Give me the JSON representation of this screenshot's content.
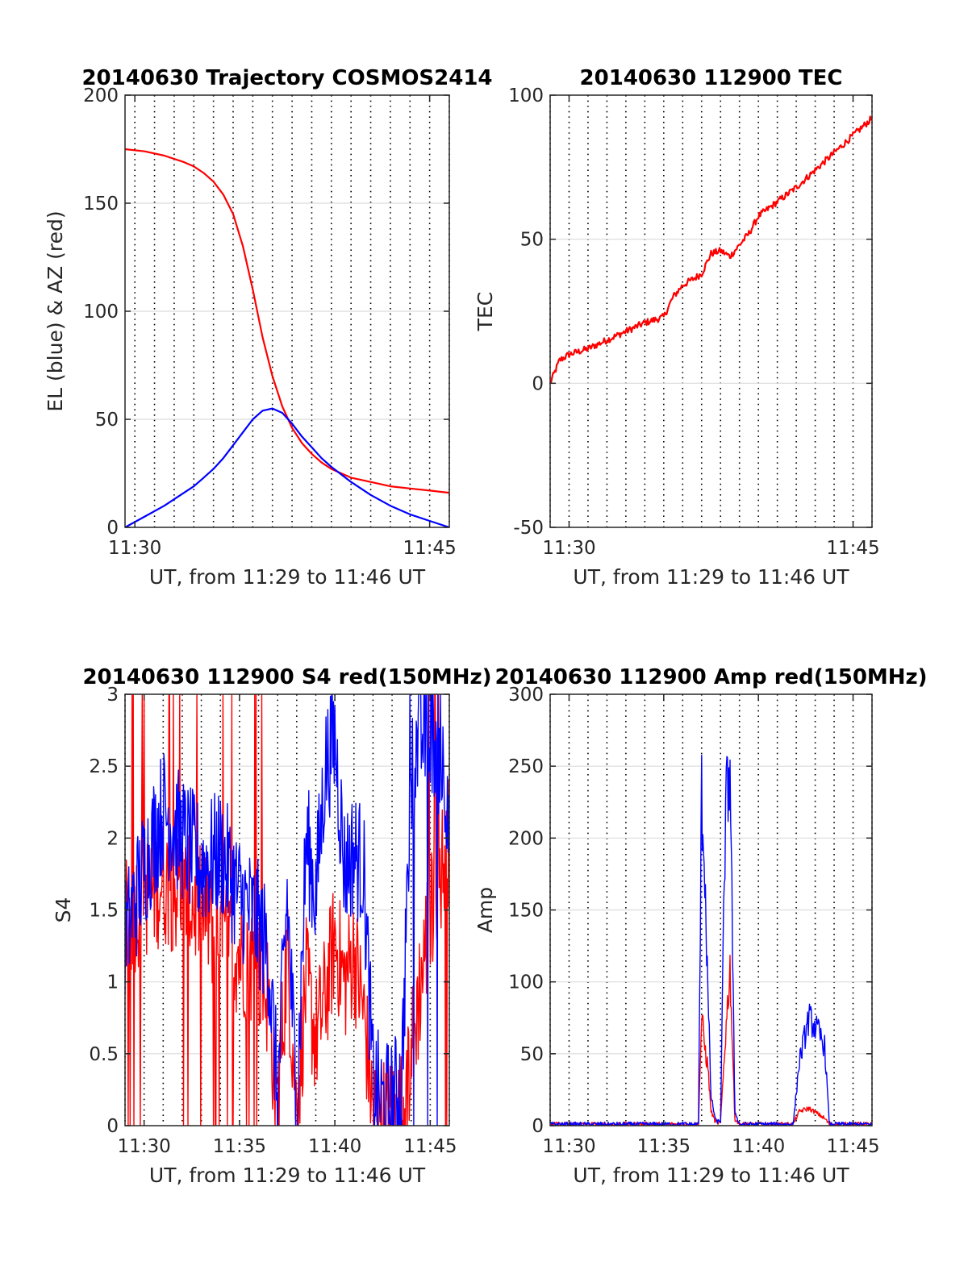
{
  "chart_data": [
    {
      "id": "trajectory",
      "type": "line",
      "title": "20140630 Trajectory COSMOS2414",
      "xlabel": "UT, from 11:29 to 11:46 UT",
      "ylabel": "EL (blue) & AZ (red)",
      "xlim": [
        "11:29:30",
        "11:46:00"
      ],
      "ylim": [
        0,
        200
      ],
      "x_ticks": [
        "11:30",
        "11:45"
      ],
      "y_ticks": [
        "0",
        "50",
        "100",
        "150",
        "200"
      ],
      "grid": true,
      "colors": {
        "EL": "#0000ff",
        "AZ": "#ff0000"
      },
      "series": [
        {
          "name": "AZ",
          "color": "#ff0000",
          "x": [
            "11:29:30",
            "11:30:30",
            "11:31:30",
            "11:32:30",
            "11:33:00",
            "11:33:30",
            "11:34:00",
            "11:34:30",
            "11:35:00",
            "11:35:30",
            "11:36:00",
            "11:36:30",
            "11:37:00",
            "11:37:30",
            "11:38:00",
            "11:38:30",
            "11:39:00",
            "11:39:30",
            "11:40:00",
            "11:41:00",
            "11:42:00",
            "11:43:00",
            "11:44:00",
            "11:45:00",
            "11:46:00"
          ],
          "values": [
            175,
            174,
            172,
            169,
            167,
            164,
            160,
            154,
            145,
            130,
            110,
            88,
            70,
            56,
            46,
            39,
            34,
            30,
            27,
            23,
            21,
            19,
            18,
            17,
            16
          ]
        },
        {
          "name": "EL",
          "color": "#0000ff",
          "x": [
            "11:29:30",
            "11:30:30",
            "11:31:30",
            "11:32:30",
            "11:33:00",
            "11:33:30",
            "11:34:00",
            "11:34:30",
            "11:35:00",
            "11:35:30",
            "11:36:00",
            "11:36:30",
            "11:37:00",
            "11:37:30",
            "11:38:00",
            "11:38:30",
            "11:39:00",
            "11:39:30",
            "11:40:00",
            "11:41:00",
            "11:42:00",
            "11:43:00",
            "11:44:00",
            "11:45:00",
            "11:46:00"
          ],
          "values": [
            0,
            5,
            10,
            16,
            19,
            23,
            27,
            32,
            38,
            44,
            50,
            54,
            55,
            53,
            48,
            42,
            37,
            32,
            28,
            21,
            15,
            10,
            6,
            3,
            0
          ]
        }
      ]
    },
    {
      "id": "tec",
      "type": "line",
      "title": "20140630 112900 TEC",
      "xlabel": "UT, from 11:29 to 11:46 UT",
      "ylabel": "TEC",
      "xlim": [
        "11:29:00",
        "11:46:00"
      ],
      "ylim": [
        -50,
        100
      ],
      "x_ticks": [
        "11:30",
        "11:45"
      ],
      "y_ticks": [
        "-50",
        "0",
        "50",
        "100"
      ],
      "grid": true,
      "series": [
        {
          "name": "TEC",
          "color": "#ff0000",
          "x": [
            "11:29:00",
            "11:29:30",
            "11:30:00",
            "11:31:00",
            "11:32:00",
            "11:33:00",
            "11:34:00",
            "11:35:00",
            "11:35:30",
            "11:36:00",
            "11:37:00",
            "11:37:30",
            "11:38:00",
            "11:38:30",
            "11:39:00",
            "11:39:30",
            "11:40:00",
            "11:41:00",
            "11:42:00",
            "11:43:00",
            "11:44:00",
            "11:45:00",
            "11:46:00"
          ],
          "values": [
            0,
            8,
            10,
            12,
            15,
            18,
            21,
            23,
            30,
            34,
            38,
            45,
            46,
            44,
            48,
            52,
            58,
            63,
            68,
            74,
            80,
            86,
            92
          ]
        }
      ]
    },
    {
      "id": "s4",
      "type": "line",
      "title": "20140630 112900 S4 red(150MHz)",
      "xlabel": "UT, from 11:29 to 11:46 UT",
      "ylabel": "S4",
      "xlim": [
        "11:29:00",
        "11:46:00"
      ],
      "ylim": [
        0,
        3
      ],
      "x_ticks": [
        "11:30",
        "11:35",
        "11:40",
        "11:45"
      ],
      "y_ticks": [
        "0",
        "0.5",
        "1",
        "1.5",
        "2",
        "2.5",
        "3"
      ],
      "grid": true,
      "series": [
        {
          "name": "red",
          "color": "#ff0000",
          "x": [
            "11:29:00",
            "11:30:00",
            "11:31:00",
            "11:32:00",
            "11:33:00",
            "11:34:00",
            "11:35:00",
            "11:36:00",
            "11:36:30",
            "11:37:00",
            "11:37:30",
            "11:38:00",
            "11:38:30",
            "11:39:00",
            "11:39:30",
            "11:40:00",
            "11:40:30",
            "11:41:00",
            "11:41:30",
            "11:42:00",
            "11:42:30",
            "11:43:00",
            "11:43:30",
            "11:44:00",
            "11:44:30",
            "11:45:00",
            "11:46:00"
          ],
          "values": [
            1.4,
            1.6,
            1.7,
            1.6,
            1.5,
            1.3,
            1.2,
            1.1,
            0.9,
            0.1,
            1.2,
            0.1,
            1.0,
            0.6,
            0.9,
            1.3,
            1.0,
            1.2,
            0.8,
            0.1,
            0.05,
            0.05,
            0.1,
            0.5,
            1.0,
            1.5,
            2.0
          ]
        },
        {
          "name": "blue",
          "color": "#0000ff",
          "x": [
            "11:29:00",
            "11:30:00",
            "11:31:00",
            "11:32:00",
            "11:33:00",
            "11:34:00",
            "11:35:00",
            "11:36:00",
            "11:36:30",
            "11:37:00",
            "11:37:30",
            "11:38:00",
            "11:38:30",
            "11:39:00",
            "11:39:30",
            "11:40:00",
            "11:40:30",
            "11:41:00",
            "11:41:30",
            "11:42:00",
            "11:42:30",
            "11:43:00",
            "11:43:30",
            "11:44:00",
            "11:44:30",
            "11:45:00",
            "11:46:00"
          ],
          "values": [
            1.3,
            1.8,
            2.2,
            2.0,
            1.8,
            1.9,
            1.6,
            1.4,
            1.2,
            0.2,
            1.6,
            0.1,
            2.0,
            1.6,
            2.5,
            2.7,
            1.8,
            1.9,
            1.8,
            0.3,
            0.15,
            0.15,
            0.3,
            2.5,
            2.7,
            2.8,
            2.3
          ]
        }
      ]
    },
    {
      "id": "amp",
      "type": "line",
      "title": "20140630 112900 Amp red(150MHz)",
      "xlabel": "UT, from 11:29 to 11:46 UT",
      "ylabel": "Amp",
      "xlim": [
        "11:29:00",
        "11:46:00"
      ],
      "ylim": [
        0,
        300
      ],
      "x_ticks": [
        "11:30",
        "11:35",
        "11:40",
        "11:45"
      ],
      "y_ticks": [
        "0",
        "50",
        "100",
        "150",
        "200",
        "250",
        "300"
      ],
      "grid": true,
      "series": [
        {
          "name": "red",
          "color": "#ff0000",
          "x": [
            "11:29:00",
            "11:36:50",
            "11:37:00",
            "11:37:10",
            "11:37:20",
            "11:37:30",
            "11:37:45",
            "11:38:00",
            "11:38:15",
            "11:38:30",
            "11:38:45",
            "11:39:00",
            "11:41:50",
            "11:42:10",
            "11:42:40",
            "11:43:10",
            "11:43:30",
            "11:43:45",
            "11:46:00"
          ],
          "values": [
            1,
            1,
            75,
            55,
            40,
            10,
            2,
            2,
            60,
            110,
            5,
            1,
            1,
            10,
            12,
            8,
            5,
            1,
            1
          ]
        },
        {
          "name": "blue",
          "color": "#0000ff",
          "x": [
            "11:29:00",
            "11:36:50",
            "11:37:00",
            "11:37:10",
            "11:37:20",
            "11:37:30",
            "11:37:45",
            "11:38:00",
            "11:38:15",
            "11:38:30",
            "11:38:45",
            "11:39:00",
            "11:41:50",
            "11:42:10",
            "11:42:40",
            "11:43:10",
            "11:43:30",
            "11:43:45",
            "11:46:00"
          ],
          "values": [
            1,
            1,
            230,
            180,
            90,
            20,
            3,
            3,
            210,
            255,
            10,
            1,
            1,
            45,
            75,
            65,
            55,
            1,
            1
          ]
        }
      ]
    }
  ]
}
